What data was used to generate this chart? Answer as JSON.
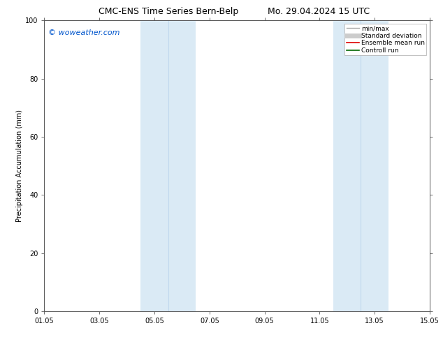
{
  "title_left": "CMC-ENS Time Series Bern-Belp",
  "title_right": "Mo. 29.04.2024 15 UTC",
  "ylabel": "Precipitation Accumulation (mm)",
  "watermark": "© woweather.com",
  "watermark_color": "#0055cc",
  "xlim_start": 0.0,
  "xlim_end": 14.0,
  "ylim": [
    0,
    100
  ],
  "yticks": [
    0,
    20,
    40,
    60,
    80,
    100
  ],
  "xtick_labels": [
    "01.05",
    "03.05",
    "05.05",
    "07.05",
    "09.05",
    "11.05",
    "13.05",
    "15.05"
  ],
  "xtick_positions": [
    0,
    2,
    4,
    6,
    8,
    10,
    12,
    14
  ],
  "shaded_bands": [
    {
      "x_start": 3.5,
      "x_end": 5.5,
      "color": "#daeaf5"
    },
    {
      "x_start": 10.5,
      "x_end": 12.5,
      "color": "#daeaf5"
    }
  ],
  "inner_lines": [
    {
      "x": 4.5,
      "color": "#c0d8ee"
    },
    {
      "x": 11.5,
      "color": "#c0d8ee"
    }
  ],
  "legend_entries": [
    {
      "label": "min/max",
      "color": "#aaaaaa",
      "lw": 1.0,
      "style": "solid"
    },
    {
      "label": "Standard deviation",
      "color": "#cccccc",
      "lw": 5,
      "style": "solid"
    },
    {
      "label": "Ensemble mean run",
      "color": "#dd0000",
      "lw": 1.2,
      "style": "solid"
    },
    {
      "label": "Controll run",
      "color": "#006600",
      "lw": 1.2,
      "style": "solid"
    }
  ],
  "background_color": "#ffffff",
  "title_fontsize": 9,
  "label_fontsize": 7,
  "tick_fontsize": 7,
  "watermark_fontsize": 8,
  "legend_fontsize": 6.5
}
